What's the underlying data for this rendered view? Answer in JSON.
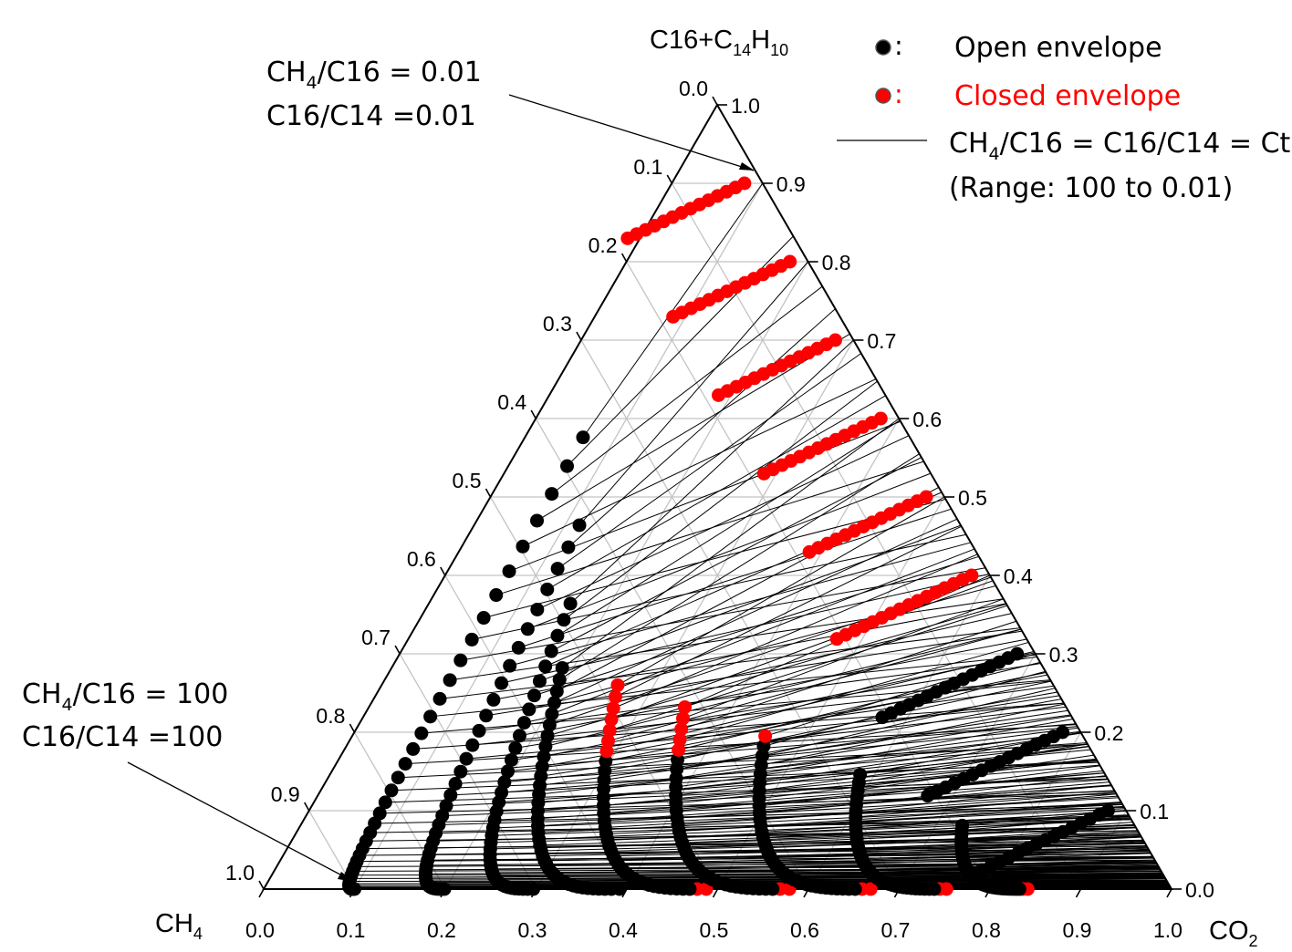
{
  "chart_data": {
    "type": "scatter",
    "subtype": "ternary",
    "axes": {
      "bottom_left_label": "CH",
      "bottom_left_sub": "4",
      "bottom_right_label": "CO",
      "bottom_right_sub": "2",
      "top_label_a": "C16+C",
      "top_label_sub1": "14",
      "top_label_b": "H",
      "top_label_sub2": "10"
    },
    "ticks": {
      "bottom": [
        "0.0",
        "0.1",
        "0.2",
        "0.3",
        "0.4",
        "0.5",
        "0.6",
        "0.7",
        "0.8",
        "0.9",
        "1.0"
      ],
      "left": [
        "0.0",
        "0.1",
        "0.2",
        "0.3",
        "0.4",
        "0.5",
        "0.6",
        "0.7",
        "0.8",
        "0.9",
        "1.0"
      ],
      "right": [
        "0.0",
        "0.1",
        "0.2",
        "0.3",
        "0.4",
        "0.5",
        "0.6",
        "0.7",
        "0.8",
        "0.9",
        "1.0"
      ]
    },
    "grid": true,
    "legend": {
      "placement": "top-right",
      "items": [
        {
          "marker_color": "#000000",
          "sep": ":",
          "label": "Open envelope",
          "color": "#000000"
        },
        {
          "marker_color": "#ff0000",
          "sep": ":",
          "label": "Closed envelope",
          "color": "#ff0000"
        }
      ],
      "line_item": {
        "text_a": "CH",
        "sub_a": "4",
        "text_b": "/C16 = C16/C14 = Ct",
        "range_text": "(Range: 100 to 0.01)"
      }
    },
    "annotations": {
      "top": {
        "line1_a": "CH",
        "line1_sub": "4",
        "line1_b": "/C16 = 0.01",
        "line2": "C16/C14 =0.01"
      },
      "bottom": {
        "line1_a": "CH",
        "line1_sub": "4",
        "line1_b": "/C16 = 100",
        "line2": "C16/C14 =100"
      }
    },
    "series": [
      {
        "name": "Open envelope",
        "color": "#000000"
      },
      {
        "name": "Closed envelope",
        "color": "#ff0000"
      }
    ],
    "families": [
      {
        "co2": 0.1,
        "xspan": [
          0.0,
          0.36
        ],
        "t_closed": 999
      },
      {
        "co2": 0.2,
        "xspan": [
          0.005,
          0.42
        ],
        "t_closed": 999
      },
      {
        "co2": 0.3,
        "xspan": [
          0.01,
          0.48
        ],
        "t_closed": 999
      },
      {
        "co2": 0.4,
        "xspan": [
          0.02,
          0.53
        ],
        "t_closed": 999
      },
      {
        "co2": 0.5,
        "xspan": [
          0.025,
          0.48
        ],
        "t_closed": 0.02
      },
      {
        "co2": 0.6,
        "xspan": [
          0.035,
          0.42
        ],
        "t_closed": 0.02
      },
      {
        "co2": 0.7,
        "xspan": [
          0.045,
          0.35
        ],
        "t_closed": 0.02
      },
      {
        "co2": 0.8,
        "xspan": [
          0.06,
          0.27
        ],
        "t_closed": 0.02
      },
      {
        "co2": 0.9,
        "xspan": [
          0.065,
          0.19
        ],
        "t_closed": 0.02
      }
    ]
  }
}
